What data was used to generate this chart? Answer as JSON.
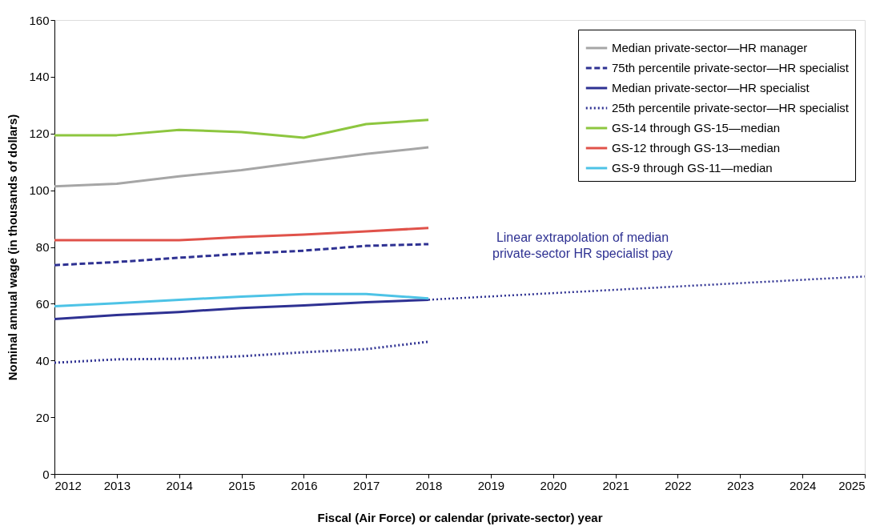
{
  "chart_data": {
    "type": "line",
    "xlabel": "Fiscal (Air Force) or calendar (private-sector) year",
    "ylabel": "Nominal annual wage (in thousands of dollars)",
    "x": [
      2012,
      2013,
      2014,
      2015,
      2016,
      2017,
      2018
    ],
    "series": [
      {
        "name": "Median private-sector—HR manager",
        "color": "#a6a6a6",
        "line_style": "solid",
        "values": [
          101.4,
          102.3,
          104.9,
          107.1,
          110.0,
          112.8,
          115.1
        ]
      },
      {
        "name": "75th percentile private-sector—HR specialist",
        "color": "#2e3192",
        "line_style": "dashed",
        "values": [
          73.6,
          74.7,
          76.2,
          77.6,
          78.7,
          80.4,
          81.0
        ]
      },
      {
        "name": "Median private-sector—HR specialist",
        "color": "#2e3192",
        "line_style": "solid",
        "values": [
          54.6,
          56.0,
          57.1,
          58.5,
          59.4,
          60.5,
          61.4
        ]
      },
      {
        "name": "25th percentile private-sector—HR specialist",
        "color": "#2e3192",
        "line_style": "dotted",
        "values": [
          39.2,
          40.4,
          40.6,
          41.5,
          42.9,
          44.0,
          46.6
        ]
      },
      {
        "name": "GS-14 through GS-15—median",
        "color": "#8dc63f",
        "line_style": "solid",
        "values": [
          119.4,
          119.4,
          121.3,
          120.5,
          118.5,
          123.3,
          124.8
        ]
      },
      {
        "name": "GS-12 through GS-13—median",
        "color": "#e0524a",
        "line_style": "solid",
        "values": [
          82.4,
          82.4,
          82.4,
          83.5,
          84.4,
          85.5,
          86.7
        ]
      },
      {
        "name": "GS-9 through GS-11—median",
        "color": "#4dc3e6",
        "line_style": "solid",
        "values": [
          59.1,
          60.2,
          61.4,
          62.5,
          63.4,
          63.4,
          61.9
        ]
      },
      {
        "name": "Linear extrapolation of median\nprivate-sector HR specialist pay",
        "type": "line",
        "x": [
          2018,
          2025
        ],
        "color": "#2e3192",
        "line_style": "dotted",
        "values": [
          61.4,
          69.6
        ]
      }
    ],
    "xlim": [
      2012,
      2025
    ],
    "xticks": [
      2012,
      2013,
      2014,
      2015,
      2016,
      2017,
      2018,
      2019,
      2020,
      2021,
      2022,
      2023,
      2024,
      2025
    ],
    "ylim": [
      0,
      160
    ],
    "yticks": [
      0,
      20,
      40,
      60,
      80,
      100,
      120,
      140,
      160
    ],
    "grid": false,
    "legend": "top right"
  }
}
